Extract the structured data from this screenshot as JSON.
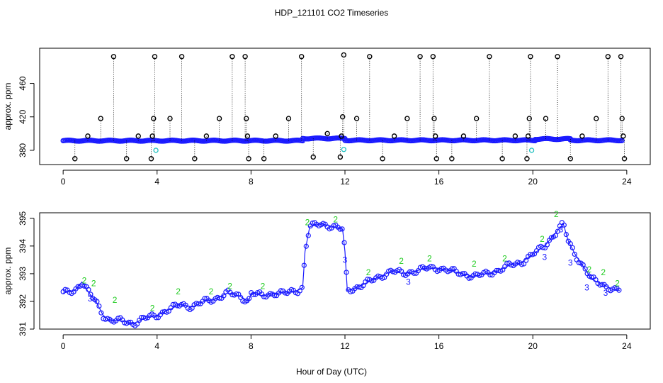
{
  "figure": {
    "title": "HDP_121101  CO2 Timeseries",
    "xlabel": "Hour of Day (UTC)"
  },
  "colors": {
    "black": "#000000",
    "blue": "#1a1aff",
    "green": "#22cc22",
    "cyan": "#20c0c0"
  },
  "chart_data": [
    {
      "type": "scatter",
      "title": "",
      "xlabel": "",
      "ylabel": "approx. ppm",
      "xlim": [
        -1,
        25
      ],
      "ylim": [
        363,
        502
      ],
      "xticks": [
        0,
        4,
        8,
        12,
        16,
        20,
        24
      ],
      "yticks": [
        380,
        420,
        460
      ],
      "baseline_bands": [
        {
          "x0": 0.0,
          "x1": 10.2,
          "y": 391.5
        },
        {
          "x0": 10.2,
          "x1": 12.0,
          "y": 394.2
        },
        {
          "x0": 12.0,
          "x1": 20.1,
          "y": 392.0
        },
        {
          "x0": 20.1,
          "x1": 21.6,
          "y": 393.5
        },
        {
          "x0": 21.6,
          "x1": 23.8,
          "y": 392.0
        }
      ],
      "series": [
        {
          "marker": "black-circle",
          "points": [
            [
              0.5,
              370
            ],
            [
              1.05,
              397
            ],
            [
              1.6,
              418
            ],
            [
              2.15,
              492
            ],
            [
              2.7,
              370
            ],
            [
              3.2,
              397
            ],
            [
              3.75,
              370
            ],
            [
              3.8,
              397
            ],
            [
              3.85,
              418
            ],
            [
              3.9,
              492
            ],
            [
              4.55,
              418
            ],
            [
              5.05,
              492
            ],
            [
              5.6,
              370
            ],
            [
              6.1,
              397
            ],
            [
              6.65,
              418
            ],
            [
              7.2,
              492
            ],
            [
              7.75,
              492
            ],
            [
              7.8,
              418
            ],
            [
              7.85,
              397
            ],
            [
              7.9,
              370
            ],
            [
              8.55,
              370
            ],
            [
              9.05,
              397
            ],
            [
              9.6,
              418
            ],
            [
              10.15,
              492
            ],
            [
              10.65,
              372
            ],
            [
              11.25,
              400
            ],
            [
              11.8,
              372
            ],
            [
              11.85,
              397
            ],
            [
              11.9,
              420
            ],
            [
              11.95,
              494
            ],
            [
              12.5,
              418
            ],
            [
              13.05,
              492
            ],
            [
              13.6,
              370
            ],
            [
              14.1,
              397
            ],
            [
              14.65,
              418
            ],
            [
              15.2,
              492
            ],
            [
              15.75,
              492
            ],
            [
              15.8,
              418
            ],
            [
              15.85,
              397
            ],
            [
              15.9,
              370
            ],
            [
              16.55,
              370
            ],
            [
              17.05,
              397
            ],
            [
              17.6,
              418
            ],
            [
              18.15,
              492
            ],
            [
              18.7,
              370
            ],
            [
              19.25,
              397
            ],
            [
              19.75,
              370
            ],
            [
              19.8,
              397
            ],
            [
              19.85,
              418
            ],
            [
              19.9,
              492
            ],
            [
              20.55,
              418
            ],
            [
              21.05,
              492
            ],
            [
              21.6,
              370
            ],
            [
              22.1,
              397
            ],
            [
              22.7,
              418
            ],
            [
              23.2,
              492
            ],
            [
              23.75,
              492
            ],
            [
              23.8,
              418
            ],
            [
              23.85,
              397
            ],
            [
              23.9,
              370
            ]
          ]
        },
        {
          "marker": "cyan-circle",
          "points": [
            [
              3.95,
              380
            ],
            [
              11.95,
              381
            ],
            [
              19.95,
              380
            ]
          ]
        }
      ]
    },
    {
      "type": "line",
      "title": "",
      "xlabel": "",
      "ylabel": "approx. ppm",
      "xlim": [
        -1,
        25
      ],
      "ylim": [
        391,
        395.2
      ],
      "xticks": [
        0,
        4,
        8,
        12,
        16,
        20,
        24
      ],
      "yticks": [
        391,
        392,
        393,
        394,
        395
      ],
      "series": [
        {
          "marker": "blue-circle",
          "glyphs": [
            "2",
            "3"
          ],
          "points": [
            [
              0.0,
              392.3
            ],
            [
              0.5,
              392.4
            ],
            [
              0.8,
              392.7
            ],
            [
              1.1,
              392.3
            ],
            [
              1.4,
              392.0
            ],
            [
              1.7,
              391.5
            ],
            [
              2.0,
              391.3
            ],
            [
              2.5,
              391.3
            ],
            [
              3.0,
              391.2
            ],
            [
              3.5,
              391.4
            ],
            [
              4.0,
              391.5
            ],
            [
              4.5,
              391.7
            ],
            [
              5.0,
              391.9
            ],
            [
              5.5,
              391.8
            ],
            [
              6.0,
              392.0
            ],
            [
              6.5,
              392.1
            ],
            [
              7.0,
              392.3
            ],
            [
              7.5,
              392.2
            ],
            [
              7.9,
              392.0
            ],
            [
              8.0,
              392.3
            ],
            [
              8.5,
              392.2
            ],
            [
              9.0,
              392.3
            ],
            [
              9.5,
              392.3
            ],
            [
              10.0,
              392.4
            ],
            [
              10.2,
              392.5
            ],
            [
              10.3,
              393.8
            ],
            [
              10.5,
              394.7
            ],
            [
              11.0,
              394.8
            ],
            [
              11.5,
              394.7
            ],
            [
              11.9,
              394.6
            ],
            [
              12.0,
              393.8
            ],
            [
              12.1,
              392.4
            ],
            [
              12.5,
              392.5
            ],
            [
              13.0,
              392.7
            ],
            [
              13.5,
              392.9
            ],
            [
              14.0,
              393.1
            ],
            [
              14.5,
              393.0
            ],
            [
              15.0,
              393.1
            ],
            [
              15.5,
              393.2
            ],
            [
              16.0,
              393.2
            ],
            [
              16.5,
              393.1
            ],
            [
              17.0,
              393.0
            ],
            [
              17.5,
              392.9
            ],
            [
              18.0,
              393.0
            ],
            [
              18.5,
              393.1
            ],
            [
              19.0,
              393.3
            ],
            [
              19.5,
              393.4
            ],
            [
              20.0,
              393.7
            ],
            [
              20.5,
              394.0
            ],
            [
              21.0,
              394.5
            ],
            [
              21.3,
              394.8
            ],
            [
              21.5,
              394.2
            ],
            [
              21.8,
              393.7
            ],
            [
              22.2,
              393.2
            ],
            [
              22.5,
              392.8
            ],
            [
              23.0,
              392.6
            ],
            [
              23.5,
              392.4
            ],
            [
              23.7,
              392.4
            ]
          ]
        },
        {
          "marker": "green-glyph",
          "points": [
            [
              0.9,
              392.6
            ],
            [
              1.3,
              392.5
            ],
            [
              2.2,
              391.9
            ],
            [
              3.8,
              391.6
            ],
            [
              4.9,
              392.2
            ],
            [
              6.3,
              392.2
            ],
            [
              7.1,
              392.4
            ],
            [
              8.5,
              392.4
            ],
            [
              10.4,
              394.7
            ],
            [
              11.6,
              394.8
            ],
            [
              13.0,
              392.9
            ],
            [
              14.4,
              393.3
            ],
            [
              15.6,
              393.4
            ],
            [
              17.5,
              393.2
            ],
            [
              18.8,
              393.4
            ],
            [
              20.4,
              394.1
            ],
            [
              21.0,
              395.0
            ],
            [
              22.4,
              393.0
            ],
            [
              23.0,
              392.9
            ],
            [
              23.6,
              392.5
            ]
          ]
        }
      ]
    }
  ]
}
